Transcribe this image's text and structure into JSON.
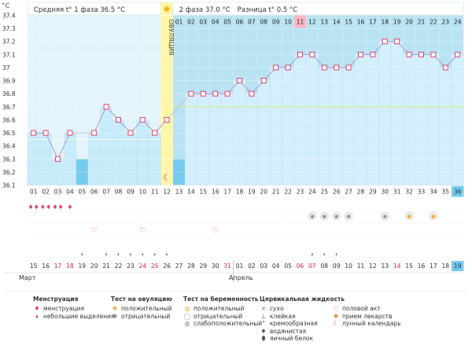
{
  "header": {
    "unit": "°C",
    "phase1_label": "Средняя t° 1 фаза",
    "phase1_value": "36.5 °C",
    "phase2_label": "2 фаза",
    "phase2_value": "37.0 °C",
    "diff_label": "Разница t°",
    "diff_value": "0.5 °C",
    "ovulation_label": "ОВУЛЯЦИЯ"
  },
  "colors": {
    "phase1_bg": "#e3f4fb",
    "phase2_bg": "#b9e3f3",
    "bar_fill": "#c8ebfa",
    "bar_dark": "#75cbee",
    "line": "#a9a9d9",
    "marker": "#e0416a",
    "ovulation": "#fff6a8",
    "highlight": "#ffb5c8",
    "green_line": "#d6ef8a"
  },
  "chart_data": {
    "type": "line",
    "x": [
      "01",
      "02",
      "03",
      "04",
      "05",
      "06",
      "07",
      "08",
      "09",
      "10",
      "11",
      "12",
      "13",
      "14",
      "15",
      "16",
      "17",
      "18",
      "19",
      "20",
      "21",
      "22",
      "23",
      "24",
      "25",
      "26",
      "27",
      "28",
      "29",
      "30",
      "31",
      "32",
      "33",
      "34",
      "35",
      "36"
    ],
    "values": [
      36.5,
      36.5,
      36.3,
      36.5,
      null,
      36.5,
      36.7,
      36.6,
      36.5,
      36.6,
      36.5,
      36.6,
      null,
      36.8,
      36.8,
      36.8,
      36.8,
      36.9,
      36.8,
      36.9,
      37.0,
      37.0,
      37.1,
      37.1,
      37.0,
      37.0,
      37.0,
      37.1,
      37.1,
      37.2,
      37.2,
      37.1,
      37.1,
      37.1,
      37.0,
      37.1
    ],
    "ylim": [
      36.1,
      37.4
    ],
    "yticks": [
      "36.1",
      "36.2",
      "36.3",
      "36.4",
      "36.5",
      "36.6",
      "36.7",
      "36.8",
      "36.9",
      "37",
      "37.1",
      "37.2",
      "37.3",
      "37.4"
    ],
    "cycle_days": [
      "01",
      "02",
      "03",
      "04",
      "05",
      "06",
      "07",
      "08",
      "09",
      "10",
      "11",
      "12",
      "13",
      "14",
      "15",
      "16",
      "17",
      "18",
      "19",
      "20",
      "21",
      "22",
      "23",
      "24",
      "25",
      "26",
      "27",
      "28",
      "29",
      "30",
      "31",
      "32",
      "33",
      "34",
      "35",
      "36"
    ],
    "cal_dates": [
      "15",
      "16",
      "17",
      "18",
      "19",
      "20",
      "21",
      "22",
      "23",
      "24",
      "25",
      "26",
      "27",
      "28",
      "29",
      "30",
      "31",
      "01",
      "02",
      "03",
      "04",
      "05",
      "06",
      "07",
      "08",
      "09",
      "10",
      "11",
      "12",
      "13",
      "14",
      "15",
      "16",
      "17",
      "18",
      "19"
    ],
    "red_dates_index": [
      2,
      3,
      9,
      10,
      16,
      22,
      23,
      30
    ],
    "phase2_top_days": [
      "",
      "",
      "",
      "",
      "",
      "",
      "",
      "",
      "",
      "",
      "",
      "",
      "01",
      "02",
      "03",
      "04",
      "05",
      "06",
      "07",
      "08",
      "09",
      "10",
      "11",
      "12",
      "13",
      "14",
      "15",
      "16",
      "17",
      "18",
      "19",
      "20",
      "21",
      "22",
      "23",
      "24"
    ],
    "ovulation_day": "12",
    "highlight_top_day": "11",
    "month_labels": [
      "Март",
      "Апрель"
    ],
    "coverline_phase1": 36.45,
    "coverline_phase2": 36.7
  },
  "legend": {
    "menstruation": {
      "title": "Менструация",
      "items": [
        "менструация",
        "небольшие выделения"
      ]
    },
    "ovulation_test": {
      "title": "Тест на овуляцию",
      "items": [
        "положительный",
        "отрицательный"
      ]
    },
    "pregnancy_test": {
      "title": "Тест на беременность",
      "items": [
        "положительный",
        "отрицательный",
        "слабоположительный"
      ]
    },
    "cervical": {
      "title": "Цервикальная жидкость",
      "items": [
        "сухо",
        "клейкая",
        "кремообразная",
        "водянистая",
        "яичный белок"
      ]
    },
    "other": {
      "items": [
        "половой акт",
        "прием лекарств",
        "лунный календарь"
      ]
    }
  }
}
